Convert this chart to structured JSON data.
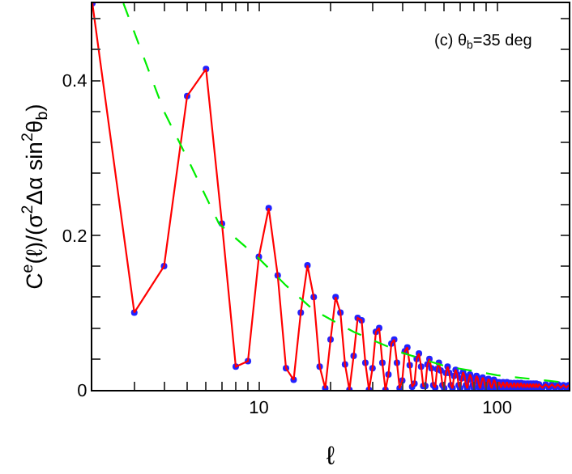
{
  "chart_data": {
    "type": "line",
    "xlabel": "ℓ",
    "ylabel": "C$^{e}$(ℓ)/(σ$^{2}$Δα sin$^{2}$θ$_{b}$)",
    "annotations": [
      "(c) θ$_{b}$=35 deg"
    ],
    "log": "x",
    "xlim": [
      2,
      200
    ],
    "ylim": [
      0,
      0.5
    ],
    "xticks": [
      {
        "value": 2,
        "label": null
      },
      {
        "value": 3,
        "label": null
      },
      {
        "value": 4,
        "label": null
      },
      {
        "value": 5,
        "label": null
      },
      {
        "value": 6,
        "label": null
      },
      {
        "value": 7,
        "label": null
      },
      {
        "value": 8,
        "label": null
      },
      {
        "value": 9,
        "label": null
      },
      10,
      {
        "value": 20,
        "label": null
      },
      {
        "value": 30,
        "label": null
      },
      {
        "value": 40,
        "label": null
      },
      {
        "value": 50,
        "label": null
      },
      {
        "value": 60,
        "label": null
      },
      {
        "value": 70,
        "label": null
      },
      {
        "value": 80,
        "label": null
      },
      {
        "value": 90,
        "label": null
      },
      100,
      {
        "value": 200,
        "label": null
      }
    ],
    "yticks": [
      0,
      {
        "value": 0.04,
        "label": null
      },
      {
        "value": 0.08,
        "label": null
      },
      {
        "value": 0.12,
        "label": null
      },
      {
        "value": 0.16,
        "label": null
      },
      0.2,
      {
        "value": 0.24,
        "label": null
      },
      {
        "value": 0.28,
        "label": null
      },
      {
        "value": 0.32,
        "label": null
      },
      {
        "value": 0.36,
        "label": null
      },
      0.4,
      {
        "value": 0.44,
        "label": null
      },
      {
        "value": 0.48,
        "label": null
      }
    ],
    "series": [
      {
        "color": "#ff0000",
        "marker": "circle",
        "line_style": "solid",
        "x": [
          2,
          3,
          4,
          5,
          6,
          7,
          8,
          9,
          10,
          11,
          12,
          13,
          14,
          15,
          16,
          17,
          18,
          19,
          20,
          21,
          22,
          23,
          24,
          25,
          26,
          27,
          28,
          29,
          30,
          31,
          32,
          33,
          34,
          35,
          36,
          37,
          38,
          39,
          40,
          41,
          42,
          43,
          44,
          45,
          46,
          47,
          48,
          49,
          50,
          51,
          52,
          53,
          54,
          55,
          56,
          57,
          58,
          59,
          60,
          61,
          62,
          63,
          64,
          65,
          66,
          67,
          68,
          69,
          70,
          71,
          72,
          73,
          74,
          75,
          76,
          77,
          78,
          79,
          80,
          81,
          82,
          83,
          84,
          85,
          86,
          87,
          88,
          89,
          90,
          91,
          92,
          93,
          94,
          95,
          96,
          97,
          98,
          99,
          100,
          102,
          104,
          106,
          108,
          110,
          112,
          114,
          116,
          118,
          120,
          122,
          124,
          126,
          128,
          130,
          132,
          134,
          136,
          138,
          140,
          142,
          144,
          146,
          148,
          150,
          155,
          160,
          165,
          170,
          175,
          180,
          185,
          190,
          195,
          200
        ],
        "values": [
          0.5,
          0.1,
          0.16,
          0.38,
          0.415,
          0.215,
          0.03,
          0.037,
          0.172,
          0.235,
          0.148,
          0.028,
          0.013,
          0.1,
          0.161,
          0.12,
          0.03,
          0.002,
          0.065,
          0.12,
          0.1,
          0.033,
          0.0,
          0.044,
          0.093,
          0.09,
          0.035,
          0.0,
          0.028,
          0.075,
          0.08,
          0.035,
          0.0,
          0.02,
          0.06,
          0.065,
          0.035,
          0.002,
          0.012,
          0.05,
          0.055,
          0.032,
          0.004,
          0.008,
          0.04,
          0.047,
          0.03,
          0.005,
          0.005,
          0.033,
          0.04,
          0.028,
          0.006,
          0.003,
          0.027,
          0.035,
          0.025,
          0.006,
          0.002,
          0.022,
          0.03,
          0.022,
          0.006,
          0.002,
          0.018,
          0.026,
          0.02,
          0.006,
          0.002,
          0.015,
          0.023,
          0.018,
          0.006,
          0.002,
          0.013,
          0.02,
          0.016,
          0.006,
          0.002,
          0.011,
          0.018,
          0.015,
          0.006,
          0.002,
          0.01,
          0.016,
          0.013,
          0.005,
          0.002,
          0.009,
          0.014,
          0.012,
          0.005,
          0.002,
          0.008,
          0.013,
          0.011,
          0.005,
          0.002,
          0.01,
          0.003,
          0.01,
          0.003,
          0.01,
          0.003,
          0.009,
          0.003,
          0.009,
          0.003,
          0.009,
          0.003,
          0.009,
          0.003,
          0.008,
          0.003,
          0.008,
          0.003,
          0.008,
          0.003,
          0.008,
          0.003,
          0.008,
          0.003,
          0.007,
          0.003,
          0.007,
          0.003,
          0.007,
          0.003,
          0.007,
          0.003,
          0.006,
          0.003,
          0.006
        ]
      },
      {
        "color": "#00ee00",
        "marker": "none",
        "line_style": "dashed",
        "x": [
          2.7,
          4,
          5,
          6.8,
          10,
          13,
          17,
          25,
          40,
          60,
          100,
          150,
          200
        ],
        "values": [
          0.5,
          0.36,
          0.3,
          0.215,
          0.17,
          0.135,
          0.103,
          0.075,
          0.048,
          0.031,
          0.019,
          0.013,
          0.009
        ]
      }
    ]
  }
}
